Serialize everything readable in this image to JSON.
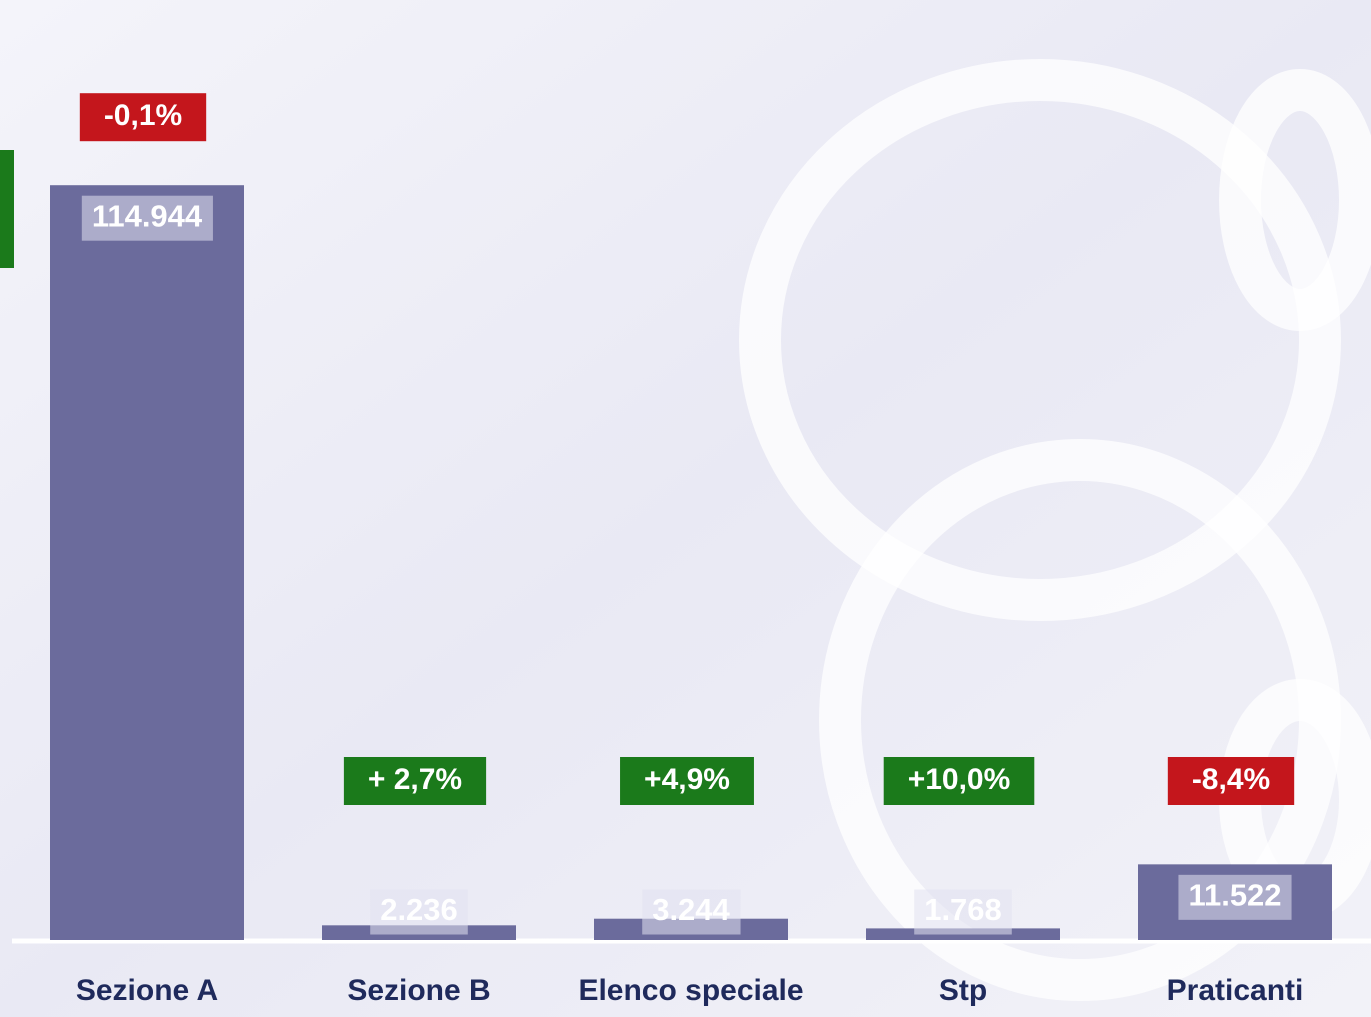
{
  "chart_data": {
    "type": "bar",
    "categories": [
      "Sezione A",
      "Sezione B",
      "Elenco speciale",
      "Stp",
      "Praticanti"
    ],
    "values": [
      114944,
      2236,
      3244,
      1768,
      11522
    ],
    "value_labels": [
      "114.944",
      "2.236",
      "3.244",
      "1.768",
      "11.522"
    ],
    "change_labels": [
      "-0,1%",
      "+ 2,7%",
      "+4,9%",
      "+10,0%",
      "-8,4%"
    ],
    "change_colors": [
      "#c4161c",
      "#1b7a1b",
      "#1b7a1b",
      "#1b7a1b",
      "#c4161c"
    ],
    "color": "#6b6b9c",
    "ylim": [
      0,
      120000
    ]
  }
}
